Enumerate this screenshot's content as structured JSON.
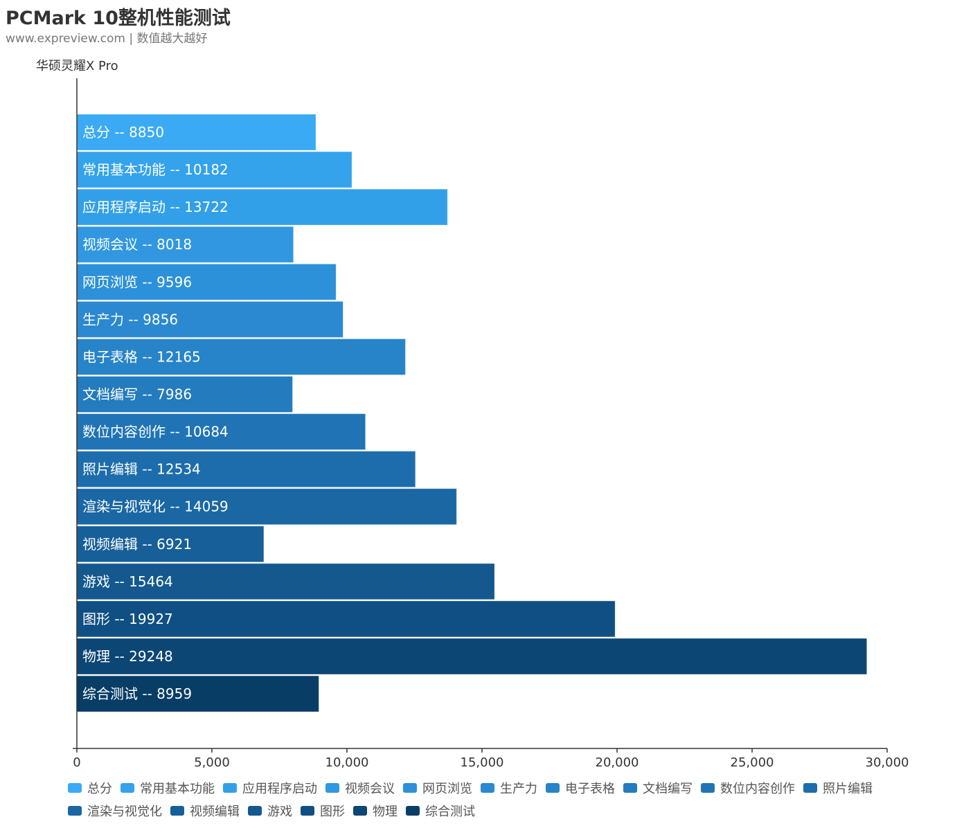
{
  "header": {
    "title": "PCMark 10整机性能测试",
    "subtitle": "www.expreview.com | 数值越大越好"
  },
  "chart_data": {
    "type": "bar",
    "orientation": "horizontal",
    "title": "PCMark 10整机性能测试",
    "subtitle": "www.expreview.com | 数值越大越好",
    "ylabel": "华硕灵耀X Pro",
    "xlabel": "",
    "xlim": [
      0,
      30000
    ],
    "xticks": [
      "0",
      "5,000",
      "10,000",
      "15,000",
      "20,000",
      "25,000",
      "30,000"
    ],
    "categories": [
      "总分",
      "常用基本功能",
      "应用程序启动",
      "视频会议",
      "网页浏览",
      "生产力",
      "电子表格",
      "文档编写",
      "数位内容创作",
      "照片编辑",
      "渲染与视觉化",
      "视频编辑",
      "游戏",
      "图形",
      "物理",
      "综合测试"
    ],
    "values": [
      8850,
      10182,
      13722,
      8018,
      9596,
      9856,
      12165,
      7986,
      10684,
      12534,
      14059,
      6921,
      15464,
      19927,
      29248,
      8959
    ],
    "bar_label_separator": "--",
    "colors": [
      "#3aaaf5",
      "#35a2ec",
      "#32a0e8",
      "#3097e0",
      "#2d91d9",
      "#2a89d0",
      "#2784c8",
      "#247bbd",
      "#2074b5",
      "#1d6dac",
      "#1a67a4",
      "#175f98",
      "#14588e",
      "#104f83",
      "#0c4675",
      "#083d66"
    ],
    "legend_position": "bottom",
    "grid": false
  }
}
